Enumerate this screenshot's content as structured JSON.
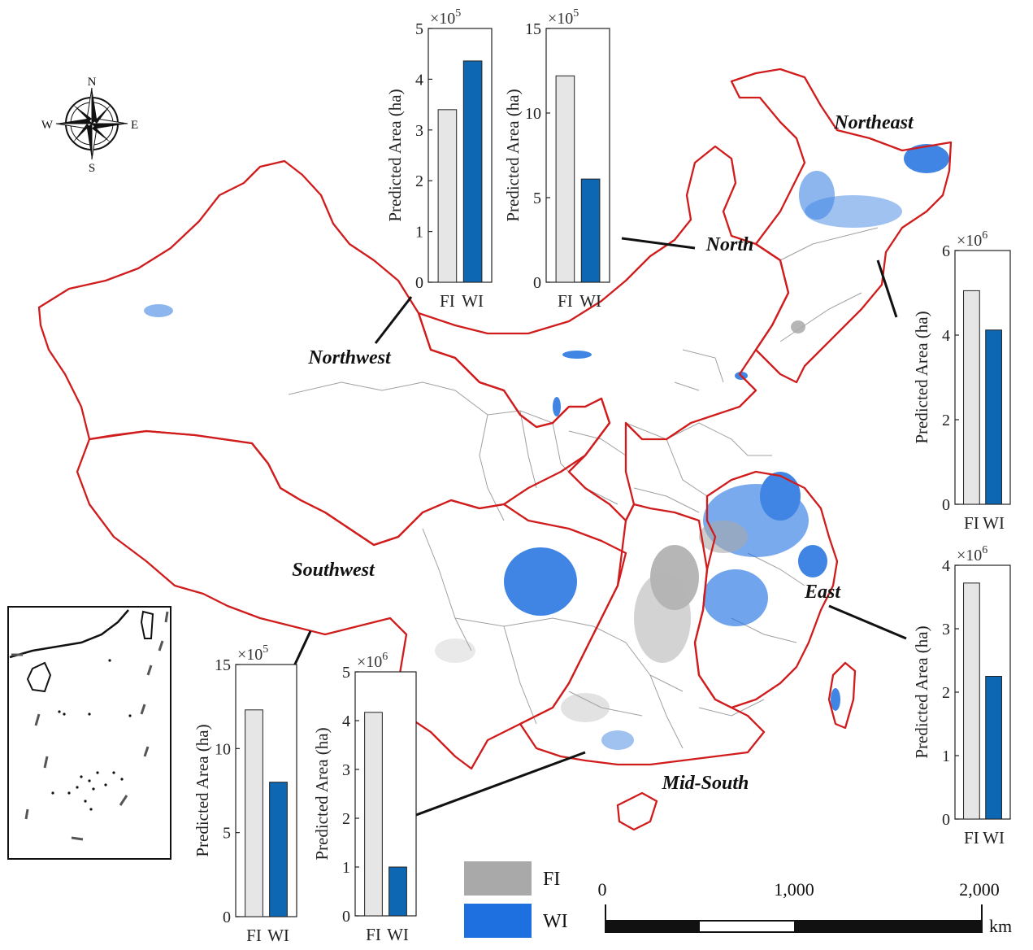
{
  "compass": {
    "n": "N",
    "s": "S",
    "e": "E",
    "w": "W",
    "icon": "compass-rose-icon"
  },
  "regions": [
    {
      "id": "northwest",
      "label": "Northwest"
    },
    {
      "id": "north",
      "label": "North"
    },
    {
      "id": "northeast",
      "label": "Northeast"
    },
    {
      "id": "east",
      "label": "East"
    },
    {
      "id": "midsouth",
      "label": "Mid-South"
    },
    {
      "id": "southwest",
      "label": "Southwest"
    }
  ],
  "colors": {
    "boundary": "#d01c1c",
    "province": "#a0a0a0",
    "fi": "#a9a9a9",
    "wi": "#1e6fe0",
    "bar_fi": "#e6e6e6",
    "bar_wi": "#0e67b2"
  },
  "legend": {
    "fi": "FI",
    "wi": "WI"
  },
  "scale_bar": {
    "ticks": [
      "0",
      "1,000",
      "2,000"
    ],
    "unit": "km"
  },
  "chart_data": [
    {
      "region": "Northwest",
      "type": "bar",
      "categories": [
        "FI",
        "WI"
      ],
      "values": [
        340000,
        436000
      ],
      "ylabel": "Predicted Area (ha)",
      "multiplier": "×10",
      "exponent": "5",
      "ylim": [
        0,
        500000
      ],
      "yticks": [
        "0",
        "1",
        "2",
        "3",
        "4",
        "5"
      ],
      "ytick_values": [
        0,
        100000,
        200000,
        300000,
        400000,
        500000
      ]
    },
    {
      "region": "North",
      "type": "bar",
      "categories": [
        "FI",
        "WI"
      ],
      "values": [
        1220000,
        610000
      ],
      "ylabel": "Predicted Area (ha)",
      "multiplier": "×10",
      "exponent": "5",
      "ylim": [
        0,
        1500000
      ],
      "yticks": [
        "0",
        "5",
        "10",
        "15"
      ],
      "ytick_values": [
        0,
        500000,
        1000000,
        1500000
      ]
    },
    {
      "region": "Northeast",
      "type": "bar",
      "categories": [
        "FI",
        "WI"
      ],
      "values": [
        5050000,
        4120000
      ],
      "ylabel": "Predicted Area (ha)",
      "multiplier": "×10",
      "exponent": "6",
      "ylim": [
        0,
        6000000
      ],
      "yticks": [
        "0",
        "2",
        "4",
        "6"
      ],
      "ytick_values": [
        0,
        2000000,
        4000000,
        6000000
      ]
    },
    {
      "region": "East",
      "type": "bar",
      "categories": [
        "FI",
        "WI"
      ],
      "values": [
        3720000,
        2250000
      ],
      "ylabel": "Predicted Area (ha)",
      "multiplier": "×10",
      "exponent": "6",
      "ylim": [
        0,
        4000000
      ],
      "yticks": [
        "0",
        "1",
        "2",
        "3",
        "4"
      ],
      "ytick_values": [
        0,
        1000000,
        2000000,
        3000000,
        4000000
      ]
    },
    {
      "region": "Southwest",
      "type": "bar",
      "categories": [
        "FI",
        "WI"
      ],
      "values": [
        1230000,
        800000
      ],
      "ylabel": "Predicted Area (ha)",
      "multiplier": "×10",
      "exponent": "5",
      "ylim": [
        0,
        1500000
      ],
      "yticks": [
        "0",
        "5",
        "10",
        "15"
      ],
      "ytick_values": [
        0,
        500000,
        1000000,
        1500000
      ]
    },
    {
      "region": "Mid-South",
      "type": "bar",
      "categories": [
        "FI",
        "WI"
      ],
      "values": [
        4170000,
        1000000
      ],
      "ylabel": "Predicted Area (ha)",
      "multiplier": "×10",
      "exponent": "6",
      "ylim": [
        0,
        5000000
      ],
      "yticks": [
        "0",
        "1",
        "2",
        "3",
        "4",
        "5"
      ],
      "ytick_values": [
        0,
        1000000,
        2000000,
        3000000,
        4000000,
        5000000
      ]
    }
  ]
}
